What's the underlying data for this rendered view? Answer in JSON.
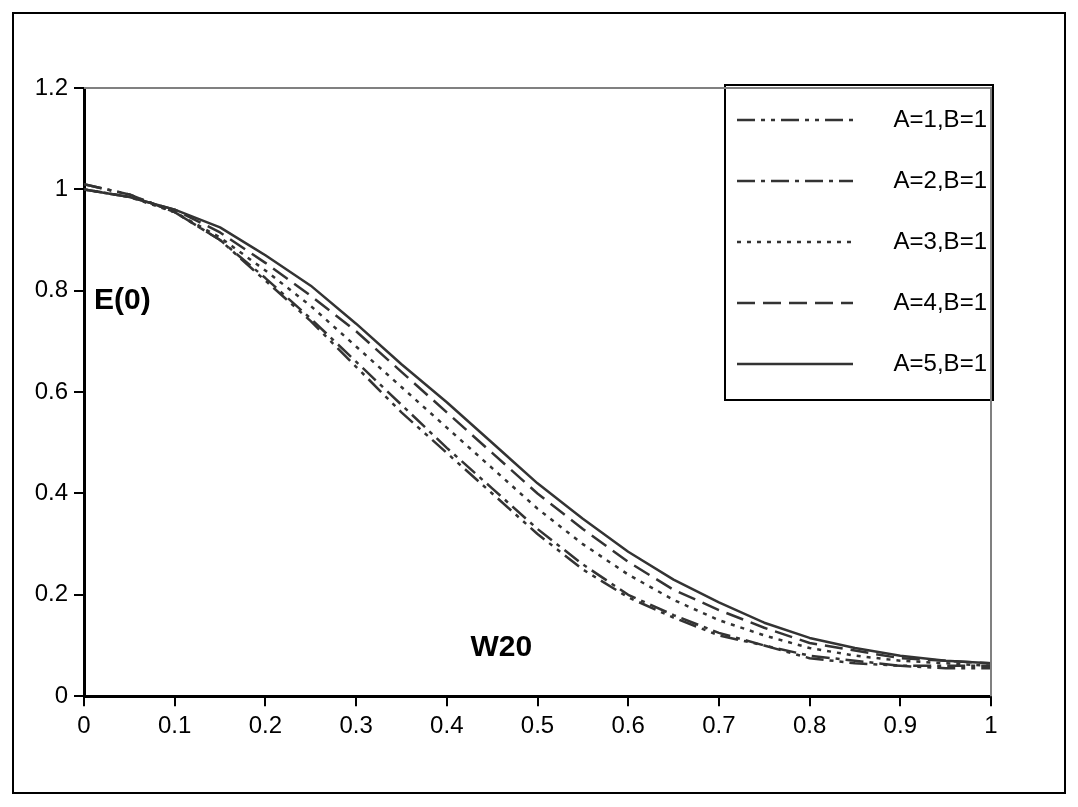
{
  "chart_data": {
    "type": "line",
    "xlabel": "W20",
    "ylabel": "E(0)",
    "x": [
      0,
      0.05,
      0.1,
      0.15,
      0.2,
      0.25,
      0.3,
      0.35,
      0.4,
      0.45,
      0.5,
      0.55,
      0.6,
      0.65,
      0.7,
      0.75,
      0.8,
      0.85,
      0.9,
      0.95,
      1
    ],
    "series": [
      {
        "name": "A=1,B=1",
        "color": "#333333",
        "line_style": "dashdotdot",
        "values": [
          1.01,
          0.99,
          0.955,
          0.9,
          0.82,
          0.74,
          0.65,
          0.56,
          0.48,
          0.4,
          0.32,
          0.25,
          0.195,
          0.155,
          0.12,
          0.1,
          0.075,
          0.065,
          0.06,
          0.055,
          0.055
        ]
      },
      {
        "name": "A=2,B=1",
        "color": "#333333",
        "line_style": "dashdot",
        "values": [
          1.01,
          0.99,
          0.955,
          0.9,
          0.825,
          0.745,
          0.66,
          0.575,
          0.49,
          0.41,
          0.33,
          0.26,
          0.2,
          0.16,
          0.125,
          0.1,
          0.08,
          0.07,
          0.06,
          0.06,
          0.06
        ]
      },
      {
        "name": "A=3,B=1",
        "color": "#333333",
        "line_style": "dotted",
        "values": [
          1.0,
          0.985,
          0.955,
          0.905,
          0.84,
          0.77,
          0.69,
          0.61,
          0.53,
          0.45,
          0.37,
          0.3,
          0.24,
          0.19,
          0.15,
          0.12,
          0.095,
          0.08,
          0.07,
          0.065,
          0.06
        ]
      },
      {
        "name": "A=4,B=1",
        "color": "#333333",
        "line_style": "dashed",
        "values": [
          1.0,
          0.985,
          0.96,
          0.915,
          0.855,
          0.79,
          0.72,
          0.64,
          0.56,
          0.48,
          0.4,
          0.33,
          0.265,
          0.21,
          0.17,
          0.135,
          0.105,
          0.09,
          0.075,
          0.07,
          0.065
        ]
      },
      {
        "name": "A=5,B=1",
        "color": "#333333",
        "line_style": "solid",
        "values": [
          1.0,
          0.985,
          0.96,
          0.925,
          0.87,
          0.81,
          0.735,
          0.655,
          0.58,
          0.5,
          0.42,
          0.35,
          0.285,
          0.23,
          0.185,
          0.145,
          0.115,
          0.095,
          0.08,
          0.07,
          0.065
        ]
      }
    ],
    "xlim": [
      0,
      1
    ],
    "xticks": [
      0,
      0.1,
      0.2,
      0.3,
      0.4,
      0.5,
      0.6,
      0.7,
      0.8,
      0.9,
      1
    ],
    "ylim": [
      0,
      1.2
    ],
    "yticks": [
      0,
      0.2,
      0.4,
      0.6,
      0.8,
      1,
      1.2
    ],
    "grid": false,
    "legend": "top right",
    "marker": "none"
  }
}
